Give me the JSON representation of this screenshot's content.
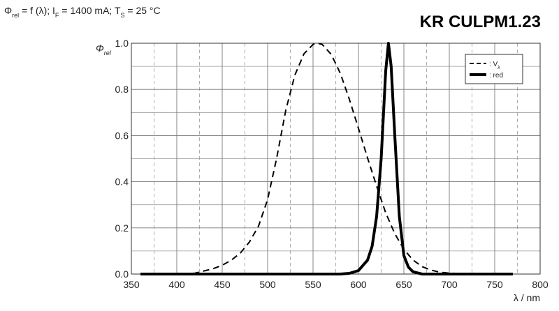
{
  "chart_data": {
    "type": "line",
    "title_parts": [
      {
        "text": "Φ"
      },
      {
        "text": "rel",
        "sub": true
      },
      {
        "text": " = f (λ); I"
      },
      {
        "text": "F",
        "sub": true
      },
      {
        "text": " = 1400 mA; T"
      },
      {
        "text": "S",
        "sub": true
      },
      {
        "text": " = 25 °C"
      }
    ],
    "heading": "KR CULPM1.23",
    "y_label_parts": [
      {
        "text": "Φ"
      },
      {
        "text": "rel",
        "sub": true
      }
    ],
    "x_label": "λ / nm",
    "xlim": [
      350,
      800
    ],
    "xticks": [
      350,
      400,
      450,
      500,
      550,
      600,
      650,
      700,
      750,
      800
    ],
    "minor_xticks": [
      375,
      425,
      475,
      525,
      575,
      625,
      675,
      725,
      775
    ],
    "ylim": [
      0,
      1
    ],
    "yticks": [
      {
        "value": 0,
        "label": "0.0"
      },
      0.2,
      0.4,
      0.6,
      0.8,
      {
        "value": 1,
        "label": "1.0"
      }
    ],
    "minor_yticks": [
      0.1,
      0.3,
      0.5,
      0.7,
      0.9
    ],
    "grid": true,
    "legend": "upper right",
    "series": [
      {
        "name": "Vλ",
        "legend_parts": [
          {
            "text": ": V"
          },
          {
            "text": "λ",
            "sub": true
          }
        ],
        "color": "#000000",
        "dash": true,
        "x": [
          360,
          400,
          420,
          440,
          450,
          460,
          470,
          480,
          490,
          500,
          510,
          520,
          530,
          540,
          550,
          555,
          560,
          570,
          580,
          590,
          600,
          610,
          620,
          630,
          640,
          650,
          660,
          670,
          680,
          690,
          700,
          720,
          750,
          770
        ],
        "values": [
          0,
          0.0004,
          0.004,
          0.023,
          0.038,
          0.06,
          0.091,
          0.139,
          0.208,
          0.323,
          0.503,
          0.71,
          0.862,
          0.954,
          0.995,
          1.0,
          0.995,
          0.952,
          0.87,
          0.757,
          0.631,
          0.503,
          0.381,
          0.265,
          0.175,
          0.107,
          0.061,
          0.032,
          0.017,
          0.008,
          0.004,
          0.001,
          0,
          0
        ]
      },
      {
        "name": ": red",
        "color": "#000000",
        "dash": false,
        "x": [
          360,
          580,
          590,
          600,
          610,
          615,
          620,
          625,
          630,
          633,
          636,
          640,
          645,
          650,
          655,
          660,
          670,
          700,
          770
        ],
        "values": [
          0,
          0,
          0.003,
          0.015,
          0.06,
          0.12,
          0.25,
          0.5,
          0.88,
          1.0,
          0.9,
          0.6,
          0.25,
          0.08,
          0.03,
          0.01,
          0,
          0,
          0
        ]
      }
    ]
  }
}
